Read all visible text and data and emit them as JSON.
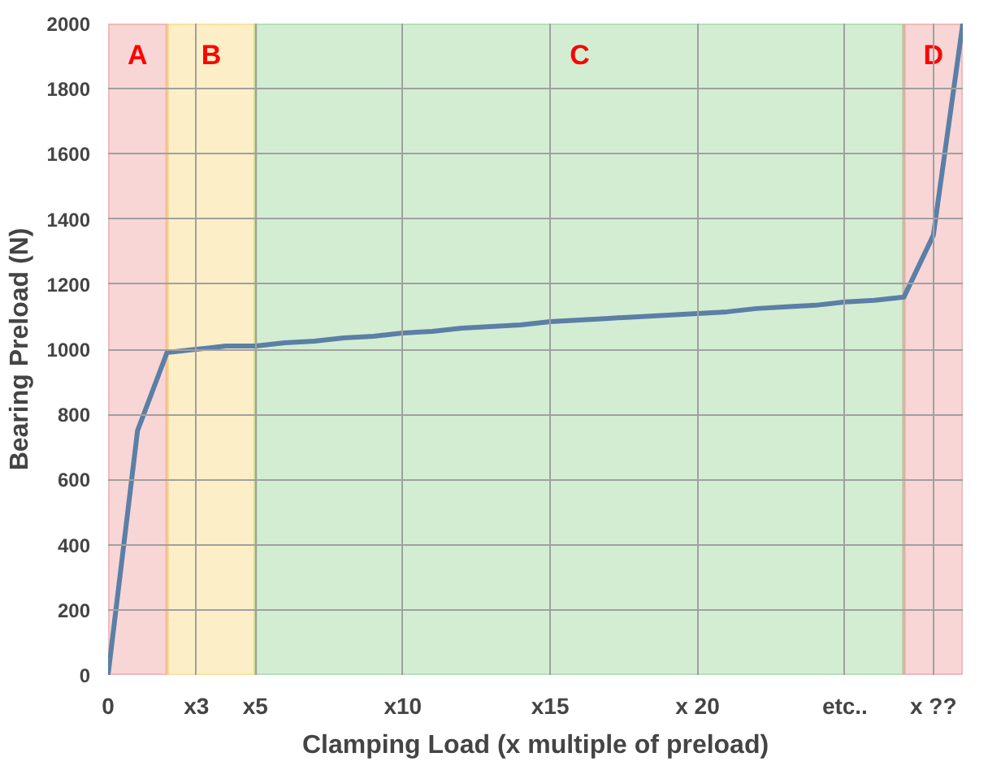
{
  "chart_data": {
    "type": "line",
    "xlabel": "Clamping Load (x multiple of preload)",
    "ylabel": "Bearing Preload (N)",
    "categories": [
      "0",
      null,
      null,
      "x3",
      null,
      "x5",
      null,
      null,
      null,
      null,
      "x10",
      null,
      null,
      null,
      null,
      "x15",
      null,
      null,
      null,
      null,
      "x 20",
      null,
      null,
      null,
      null,
      "etc..",
      null,
      null,
      "x ??",
      null
    ],
    "series": [
      {
        "color": "#5b7fa6",
        "values": [
          0,
          750,
          990,
          1000,
          1010,
          1010,
          1020,
          1025,
          1035,
          1040,
          1050,
          1055,
          1065,
          1070,
          1075,
          1085,
          1090,
          1095,
          1100,
          1105,
          1110,
          1115,
          1125,
          1130,
          1135,
          1145,
          1150,
          1160,
          1350,
          2000
        ]
      }
    ],
    "ylim": [
      0,
      2000
    ],
    "yticks": [
      0,
      200,
      400,
      600,
      800,
      1000,
      1200,
      1400,
      1600,
      1800,
      2000
    ],
    "annotations": [
      "A",
      "B",
      "C",
      "D"
    ],
    "grid": true,
    "marker": "none",
    "line_style": "solid"
  }
}
